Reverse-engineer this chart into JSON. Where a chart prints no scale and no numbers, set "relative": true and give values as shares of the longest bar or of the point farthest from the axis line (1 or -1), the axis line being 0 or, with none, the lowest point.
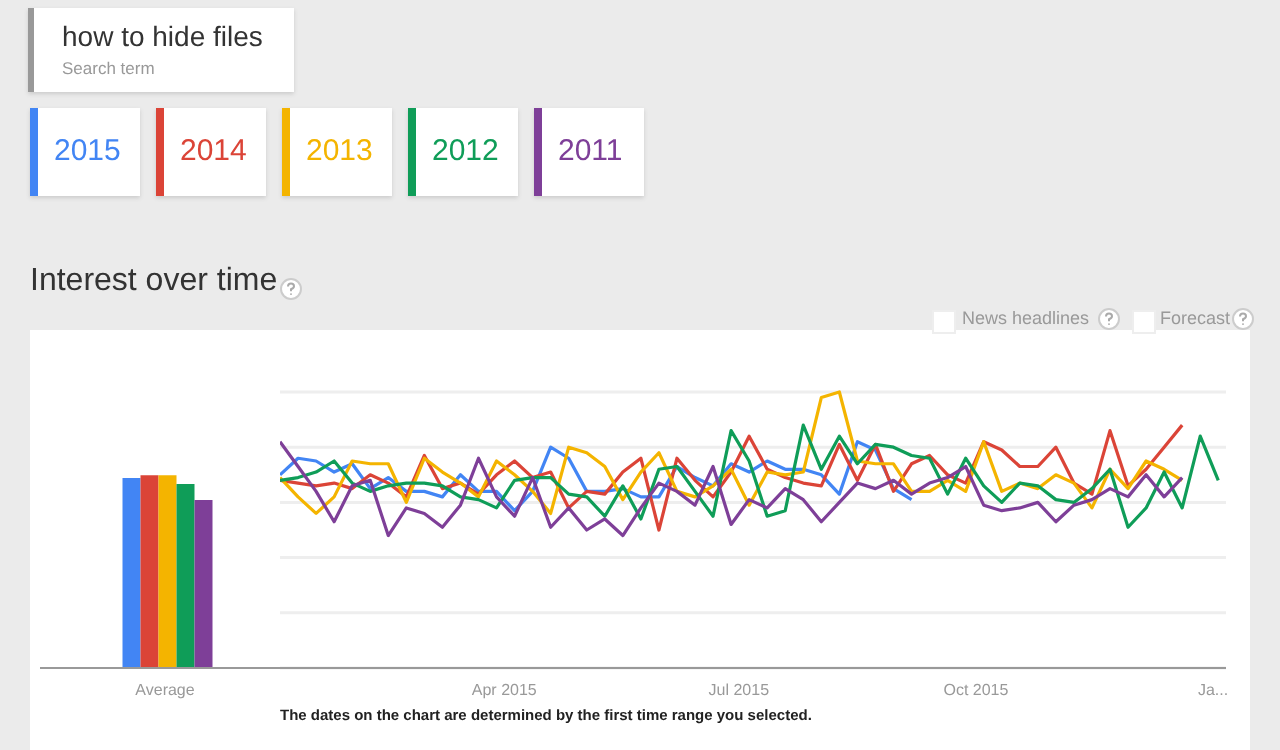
{
  "chart_data": [
    {
      "type": "bar",
      "categories": [
        "Average"
      ],
      "relative": true,
      "series": [
        {
          "color": "#4285f4",
          "values": [
            0.985
          ]
        },
        {
          "color": "#db4437",
          "values": [
            1
          ]
        },
        {
          "color": "#f4b400",
          "values": [
            1
          ]
        },
        {
          "color": "#0f9d58",
          "values": [
            0.954
          ]
        },
        {
          "color": "#7e3f98",
          "values": [
            0.871
          ]
        }
      ]
    },
    {
      "type": "line",
      "title": "Interest over time",
      "relative": true,
      "grid": "y",
      "legend": "top left",
      "annotations": [
        "how to hide files",
        "Search term",
        "News headlines",
        "Forecast",
        "The dates on the chart are determined by the first time range you selected."
      ],
      "xlim": [
        "2015-01-04",
        "2016-01-06"
      ],
      "xticks": [
        {
          "value": "2015-04-01",
          "label": "Apr 2015"
        },
        {
          "value": "2015-07-01",
          "label": "Jul 2015"
        },
        {
          "value": "2015-10-01",
          "label": "Oct 2015"
        },
        {
          "value": "2016-01-01",
          "label": "Ja..."
        }
      ],
      "x": [
        "2015-01-04",
        "2015-01-11",
        "2015-01-18",
        "2015-01-25",
        "2015-02-01",
        "2015-02-08",
        "2015-02-15",
        "2015-02-22",
        "2015-03-01",
        "2015-03-08",
        "2015-03-15",
        "2015-03-22",
        "2015-03-29",
        "2015-04-05",
        "2015-04-12",
        "2015-04-19",
        "2015-04-26",
        "2015-05-03",
        "2015-05-10",
        "2015-05-17",
        "2015-05-24",
        "2015-05-31",
        "2015-06-07",
        "2015-06-14",
        "2015-06-21",
        "2015-06-28",
        "2015-07-05",
        "2015-07-12",
        "2015-07-19",
        "2015-07-26",
        "2015-08-02",
        "2015-08-09",
        "2015-08-16",
        "2015-08-23",
        "2015-08-30",
        "2015-09-06",
        "2015-09-13",
        "2015-09-20",
        "2015-09-27",
        "2015-10-04",
        "2015-10-11",
        "2015-10-18",
        "2015-10-25",
        "2015-11-01",
        "2015-11-08",
        "2015-11-15",
        "2015-11-22",
        "2015-11-29",
        "2015-12-06",
        "2015-12-13",
        "2015-12-20",
        "2015-12-27",
        "2016-01-03"
      ],
      "series": [
        {
          "name": "2015",
          "color": "#4285f4",
          "values": [
            0.7,
            0.76,
            0.75,
            0.71,
            0.74,
            0.65,
            0.69,
            0.64,
            0.64,
            0.62,
            0.7,
            0.64,
            0.64,
            0.57,
            0.64,
            0.8,
            0.76,
            0.64,
            0.64,
            0.65,
            0.62,
            0.62,
            0.73,
            0.69,
            0.66,
            0.74,
            0.71,
            0.75,
            0.72,
            0.72,
            0.7,
            0.63,
            0.82,
            0.79,
            0.65,
            0.61,
            null,
            null,
            null,
            null,
            null,
            null,
            null,
            null,
            null,
            null,
            null,
            null,
            null,
            null,
            null,
            null,
            null
          ]
        },
        {
          "name": "2014",
          "color": "#db4437",
          "values": [
            0.68,
            0.67,
            0.66,
            0.67,
            0.65,
            0.7,
            0.67,
            0.62,
            0.77,
            0.65,
            0.67,
            0.63,
            0.7,
            0.75,
            0.69,
            0.71,
            0.58,
            0.64,
            0.63,
            0.71,
            0.76,
            0.5,
            0.76,
            0.68,
            0.62,
            0.71,
            0.84,
            0.72,
            0.69,
            0.67,
            0.66,
            0.81,
            0.68,
            0.81,
            0.64,
            0.74,
            0.77,
            0.7,
            0.67,
            0.82,
            0.79,
            0.73,
            0.73,
            0.8,
            0.67,
            0.63,
            0.86,
            0.66,
            0.72,
            0.8,
            0.88,
            null,
            null
          ]
        },
        {
          "name": "2013",
          "color": "#f4b400",
          "values": [
            0.69,
            0.62,
            0.56,
            0.62,
            0.75,
            0.74,
            0.74,
            0.6,
            0.76,
            0.71,
            0.67,
            0.62,
            0.75,
            0.7,
            0.64,
            0.56,
            0.8,
            0.78,
            0.73,
            0.61,
            0.71,
            0.78,
            0.64,
            0.62,
            0.66,
            0.72,
            0.59,
            0.71,
            0.7,
            0.71,
            0.98,
            1.0,
            0.75,
            0.74,
            0.74,
            0.64,
            0.64,
            0.68,
            0.64,
            0.82,
            0.64,
            0.67,
            0.65,
            0.7,
            0.67,
            0.58,
            0.72,
            0.65,
            0.75,
            0.72,
            0.68,
            null,
            null
          ]
        },
        {
          "name": "2012",
          "color": "#0f9d58",
          "values": [
            0.68,
            0.69,
            0.71,
            0.75,
            0.67,
            0.64,
            0.66,
            0.67,
            0.67,
            0.66,
            0.62,
            0.61,
            0.58,
            0.68,
            0.69,
            0.69,
            0.63,
            0.62,
            0.55,
            0.66,
            0.54,
            0.72,
            0.73,
            0.64,
            0.55,
            0.86,
            0.75,
            0.55,
            0.57,
            0.88,
            0.72,
            0.84,
            0.74,
            0.81,
            0.8,
            0.77,
            0.76,
            0.63,
            0.76,
            0.66,
            0.6,
            0.67,
            0.66,
            0.61,
            0.6,
            0.65,
            0.72,
            0.51,
            0.58,
            0.71,
            0.58,
            0.84,
            0.68
          ]
        },
        {
          "name": "2011",
          "color": "#7e3f98",
          "values": [
            0.82,
            0.73,
            0.64,
            0.53,
            0.66,
            0.68,
            0.48,
            0.58,
            0.56,
            0.51,
            0.59,
            0.76,
            0.62,
            0.55,
            0.69,
            0.51,
            0.58,
            0.5,
            0.54,
            0.48,
            0.58,
            0.67,
            0.64,
            0.59,
            0.73,
            0.52,
            0.61,
            0.58,
            0.65,
            0.61,
            0.53,
            0.6,
            0.67,
            0.65,
            0.68,
            0.63,
            0.67,
            0.69,
            0.73,
            0.59,
            0.57,
            0.58,
            0.6,
            0.53,
            0.59,
            0.61,
            0.65,
            0.62,
            0.7,
            0.62,
            0.69,
            null,
            null
          ]
        }
      ]
    }
  ]
}
